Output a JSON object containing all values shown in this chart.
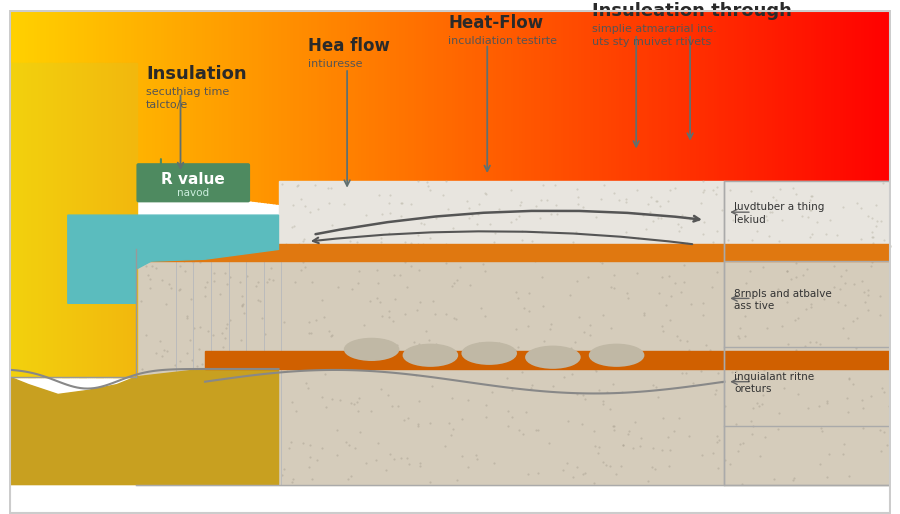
{
  "bg_color": "#ffffff",
  "labels": {
    "insulation": "Insulation",
    "insulation_sub": "secuthiag time\ntalcto/e",
    "hea_flow": "Hea flow",
    "hea_flow_sub": "intiuresse",
    "heat_flow": "Heat-Flow",
    "heat_flow_sub": "inculdiation testirte",
    "insuleation": "Insuleation through",
    "insuleation_sub": "simplie atmararial ins.\nuts sty muivet rtivets",
    "r_value": "R value",
    "r_value_sub": "navod",
    "layer1": "luvdtuber a thing\nlekiud",
    "layer2": "8rnpls and atbalve\nass tive",
    "layer3": "inquialant ritne\noreturs"
  },
  "colors": {
    "arrow_color": "#607070"
  }
}
